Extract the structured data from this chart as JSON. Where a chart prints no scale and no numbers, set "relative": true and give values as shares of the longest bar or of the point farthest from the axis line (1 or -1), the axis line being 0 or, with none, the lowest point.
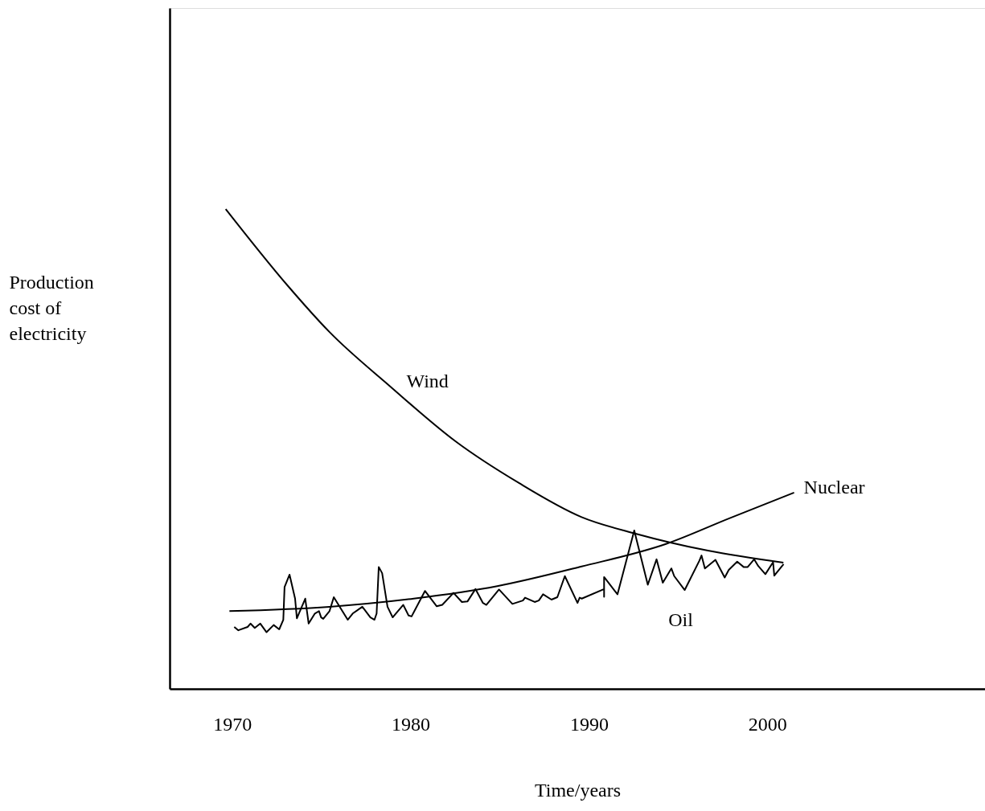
{
  "chart_data": {
    "type": "line",
    "relative": true,
    "xlabel": "Time/years",
    "ylabel": "Production cost of electricity",
    "xlim": [
      1966.5,
      2012.2
    ],
    "xticks": [
      1970,
      1980,
      1990,
      2000
    ],
    "grid": false,
    "marker": "none",
    "line_style": "solid",
    "series": [
      {
        "name": "Wind",
        "color": "#000000",
        "x": [
          1969.64,
          1973.1,
          1975.45,
          1978.87,
          1982.52,
          1986.08,
          1989.59,
          1992.66,
          1996.67,
          2000.9
        ],
        "values": [
          1.0,
          0.841,
          0.744,
          0.63,
          0.516,
          0.429,
          0.358,
          0.323,
          0.288,
          0.263
        ]
      },
      {
        "name": "Nuclear",
        "color": "#000000",
        "x": [
          1969.85,
          1975.45,
          1980.18,
          1984.86,
          1989.59,
          1994.32,
          1997.84,
          2001.5
        ],
        "values": [
          0.162,
          0.171,
          0.188,
          0.214,
          0.255,
          0.302,
          0.355,
          0.409
        ]
      },
      {
        "name": "Oil",
        "color": "#000000",
        "x": [
          1970.12,
          1970.35,
          1970.87,
          1971.03,
          1971.27,
          1971.58,
          1971.93,
          1972.33,
          1972.64,
          1972.87,
          1972.94,
          1973.22,
          1973.53,
          1973.63,
          1974.1,
          1974.29,
          1974.64,
          1974.87,
          1974.99,
          1975.11,
          1975.46,
          1975.7,
          1976.48,
          1976.76,
          1977.3,
          1977.75,
          1977.98,
          1978.1,
          1978.22,
          1978.41,
          1978.71,
          1979.0,
          1979.59,
          1979.89,
          1980.06,
          1980.81,
          1981.47,
          1981.78,
          1982.41,
          1982.88,
          1983.19,
          1983.64,
          1984.06,
          1984.25,
          1984.96,
          1985.71,
          1986.3,
          1986.42,
          1986.96,
          1987.19,
          1987.43,
          1987.9,
          1988.23,
          1988.65,
          1989.36,
          1989.48,
          1989.6,
          1990.85,
          1990.85,
          1990.85,
          1991.6,
          1992.54,
          1993.3,
          1993.79,
          1994.14,
          1994.62,
          1994.78,
          1995.37,
          1996.19,
          1996.31,
          1996.5,
          1997.09,
          1997.61,
          1997.84,
          1998.31,
          1998.67,
          1998.9,
          1999.26,
          1999.49,
          1999.89,
          2000.32,
          2000.39,
          2000.91
        ],
        "values": [
          0.129,
          0.122,
          0.129,
          0.136,
          0.127,
          0.136,
          0.118,
          0.133,
          0.124,
          0.144,
          0.212,
          0.238,
          0.188,
          0.147,
          0.188,
          0.136,
          0.157,
          0.162,
          0.149,
          0.146,
          0.162,
          0.191,
          0.144,
          0.157,
          0.171,
          0.149,
          0.144,
          0.157,
          0.254,
          0.241,
          0.171,
          0.149,
          0.175,
          0.153,
          0.151,
          0.204,
          0.172,
          0.175,
          0.2,
          0.181,
          0.182,
          0.208,
          0.179,
          0.175,
          0.207,
          0.177,
          0.184,
          0.19,
          0.181,
          0.184,
          0.197,
          0.186,
          0.191,
          0.235,
          0.179,
          0.19,
          0.188,
          0.208,
          0.192,
          0.233,
          0.197,
          0.33,
          0.217,
          0.27,
          0.221,
          0.251,
          0.235,
          0.206,
          0.267,
          0.278,
          0.251,
          0.269,
          0.232,
          0.248,
          0.265,
          0.254,
          0.254,
          0.27,
          0.256,
          0.239,
          0.264,
          0.236,
          0.26
        ]
      }
    ]
  }
}
